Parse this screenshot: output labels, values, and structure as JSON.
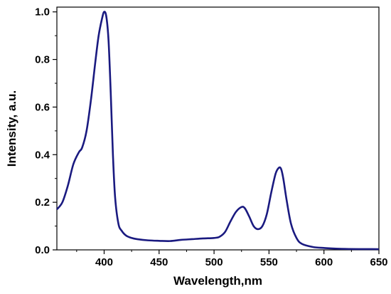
{
  "chart_data": {
    "type": "line",
    "xlabel": "Wavelength,nm",
    "ylabel": "Intensity, a.u.",
    "xlim": [
      357,
      650
    ],
    "ylim": [
      0,
      1.02
    ],
    "x_ticks": [
      400,
      450,
      500,
      550,
      600,
      650
    ],
    "x_tick_labels": [
      "400",
      "450",
      "500",
      "550",
      "600",
      "650"
    ],
    "y_ticks": [
      0,
      0.2,
      0.4,
      0.6,
      0.8,
      1.0
    ],
    "y_tick_labels": [
      "0.0",
      "0.2",
      "0.4",
      "0.6",
      "0.8",
      "1.0"
    ],
    "grid": false,
    "legend": "none",
    "line_color": "#1a1a80",
    "series": [
      {
        "x": [
          357,
          362,
          367,
          372,
          377,
          380,
          384,
          388,
          392,
          395,
          398,
          400,
          402,
          404,
          406,
          408,
          410,
          413,
          416,
          420,
          425,
          430,
          440,
          450,
          460,
          470,
          480,
          490,
          500,
          505,
          510,
          515,
          520,
          525,
          528,
          532,
          536,
          540,
          544,
          548,
          552,
          556,
          559,
          561,
          563,
          566,
          570,
          575,
          580,
          590,
          600,
          620,
          650
        ],
        "y": [
          0.17,
          0.2,
          0.27,
          0.36,
          0.41,
          0.43,
          0.5,
          0.63,
          0.79,
          0.9,
          0.97,
          1.0,
          0.98,
          0.88,
          0.66,
          0.4,
          0.22,
          0.11,
          0.08,
          0.06,
          0.05,
          0.045,
          0.04,
          0.038,
          0.037,
          0.042,
          0.045,
          0.048,
          0.05,
          0.055,
          0.075,
          0.12,
          0.16,
          0.18,
          0.175,
          0.14,
          0.1,
          0.087,
          0.1,
          0.15,
          0.24,
          0.32,
          0.345,
          0.34,
          0.3,
          0.21,
          0.11,
          0.05,
          0.025,
          0.012,
          0.008,
          0.004,
          0.003
        ]
      }
    ]
  }
}
